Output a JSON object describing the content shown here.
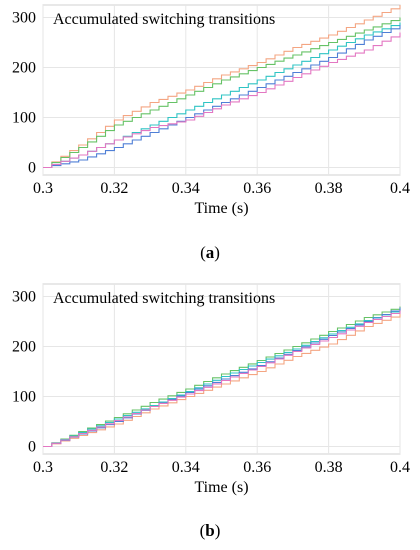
{
  "chart_data": [
    {
      "type": "line",
      "panel_label": "a",
      "title": "Accumulated switching transitions",
      "xlabel": "Time (s)",
      "ylabel": "",
      "xlim": [
        0.3,
        0.4
      ],
      "ylim": [
        -15,
        325
      ],
      "xticks": [
        "0.3",
        "0.32",
        "0.34",
        "0.36",
        "0.38",
        "0.4"
      ],
      "yticks": [
        "0",
        "100",
        "200",
        "300"
      ],
      "grid": true,
      "series": [
        {
          "color": "#f4a582",
          "x": [
            0.3,
            0.31,
            0.32,
            0.33,
            0.34,
            0.35,
            0.36,
            0.37,
            0.38,
            0.39,
            0.4
          ],
          "values": [
            0,
            45,
            95,
            130,
            155,
            185,
            210,
            240,
            265,
            295,
            325
          ]
        },
        {
          "color": "#66c266",
          "x": [
            0.3,
            0.31,
            0.32,
            0.33,
            0.34,
            0.35,
            0.36,
            0.37,
            0.38,
            0.39,
            0.4
          ],
          "values": [
            0,
            40,
            85,
            115,
            145,
            175,
            200,
            225,
            250,
            275,
            300
          ]
        },
        {
          "color": "#2fc4c4",
          "x": [
            0.3,
            0.31,
            0.32,
            0.33,
            0.34,
            0.35,
            0.36,
            0.37,
            0.38,
            0.39,
            0.4
          ],
          "values": [
            0,
            25,
            55,
            85,
            115,
            145,
            175,
            205,
            235,
            265,
            290
          ]
        },
        {
          "color": "#4f7fd6",
          "x": [
            0.3,
            0.31,
            0.32,
            0.33,
            0.34,
            0.35,
            0.36,
            0.37,
            0.38,
            0.39,
            0.4
          ],
          "values": [
            0,
            15,
            40,
            70,
            100,
            130,
            160,
            190,
            220,
            255,
            285
          ]
        },
        {
          "color": "#e377c2",
          "x": [
            0.3,
            0.31,
            0.32,
            0.33,
            0.34,
            0.35,
            0.36,
            0.37,
            0.38,
            0.39,
            0.4
          ],
          "values": [
            0,
            25,
            55,
            80,
            95,
            125,
            150,
            180,
            210,
            235,
            270
          ]
        }
      ]
    },
    {
      "type": "line",
      "panel_label": "b",
      "title": "Accumulated switching transitions",
      "xlabel": "Time (s)",
      "ylabel": "",
      "xlim": [
        0.3,
        0.4
      ],
      "ylim": [
        -15,
        325
      ],
      "xticks": [
        "0.3",
        "0.32",
        "0.34",
        "0.36",
        "0.38",
        "0.4"
      ],
      "yticks": [
        "0",
        "100",
        "200",
        "300"
      ],
      "grid": true,
      "series": [
        {
          "color": "#f4a582",
          "x": [
            0.3,
            0.31,
            0.32,
            0.33,
            0.34,
            0.35,
            0.36,
            0.37,
            0.38,
            0.39,
            0.4
          ],
          "values": [
            0,
            22,
            45,
            75,
            100,
            125,
            150,
            180,
            205,
            240,
            265
          ]
        },
        {
          "color": "#66c266",
          "x": [
            0.3,
            0.31,
            0.32,
            0.33,
            0.34,
            0.35,
            0.36,
            0.37,
            0.38,
            0.39,
            0.4
          ],
          "values": [
            0,
            30,
            58,
            88,
            115,
            145,
            172,
            200,
            230,
            258,
            280
          ]
        },
        {
          "color": "#2fc4c4",
          "x": [
            0.3,
            0.31,
            0.32,
            0.33,
            0.34,
            0.35,
            0.36,
            0.37,
            0.38,
            0.39,
            0.4
          ],
          "values": [
            0,
            28,
            55,
            82,
            110,
            140,
            168,
            195,
            225,
            252,
            275
          ]
        },
        {
          "color": "#4f7fd6",
          "x": [
            0.3,
            0.31,
            0.32,
            0.33,
            0.34,
            0.35,
            0.36,
            0.37,
            0.38,
            0.39,
            0.4
          ],
          "values": [
            0,
            25,
            50,
            80,
            108,
            135,
            162,
            192,
            222,
            250,
            278
          ]
        },
        {
          "color": "#e377c2",
          "x": [
            0.3,
            0.31,
            0.32,
            0.33,
            0.34,
            0.35,
            0.36,
            0.37,
            0.38,
            0.39,
            0.4
          ],
          "values": [
            0,
            26,
            52,
            80,
            105,
            132,
            160,
            190,
            218,
            248,
            272
          ]
        }
      ]
    }
  ],
  "captions": [
    "a",
    "b"
  ]
}
